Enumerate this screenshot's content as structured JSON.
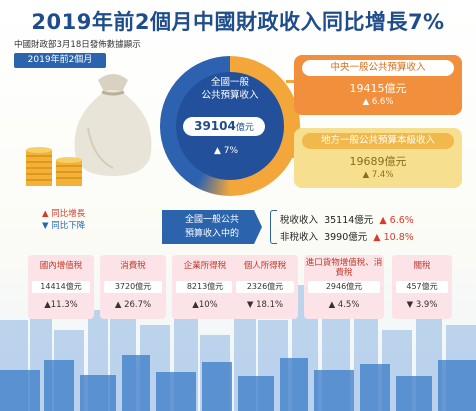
{
  "header": {
    "title": "2019年前2個月中國財政收入同比增長7%",
    "source": "中國財政部3月18日發佈數據顯示",
    "period": "2019年前2個月"
  },
  "total": {
    "label_line1": "全國一般",
    "label_line2": "公共預算收入",
    "value": "39104",
    "unit": "億元",
    "change": "▲ 7%"
  },
  "central": {
    "label": "中央一般公共預算收入",
    "value": "19415億元",
    "change": "▲ 6.6%"
  },
  "local": {
    "label": "地方一般公共預算本級收入",
    "value": "19689億元",
    "change": "▲ 7.4%"
  },
  "legend": {
    "up": "▲ 同比增長",
    "down": "▼ 同比下降"
  },
  "composition": {
    "label_line1": "全國一般公共",
    "label_line2": "預算收入中的",
    "rows": [
      {
        "name": "稅收收入",
        "value": "35114億元",
        "change": "▲ 6.6%"
      },
      {
        "name": "非稅收入",
        "value": "3990億元",
        "change": "▲ 10.8%"
      }
    ]
  },
  "taxes": [
    {
      "name": "國內增值稅",
      "value": "14414億元",
      "change": "▲11.3%"
    },
    {
      "name": "消費稅",
      "value": "3720億元",
      "change": "▲ 26.7%"
    },
    {
      "name": "企業所得稅",
      "value": "8213億元",
      "change": "▲10%"
    },
    {
      "name": "個人所得稅",
      "value": "2326億元",
      "change": "▼ 18.1%"
    },
    {
      "name": "進口貨物增值稅、消費稅",
      "value": "2946億元",
      "change": "▲ 4.5%"
    },
    {
      "name": "關稅",
      "value": "457億元",
      "change": "▼ 3.9%"
    }
  ],
  "colors": {
    "title_blue": "#1f4d8c",
    "ring_blue": "#23509a",
    "orange": "#f28f3c",
    "gold": "#f6df8e",
    "tax_pink": "#fbe3e7",
    "up_red": "#d93a2a",
    "down_blue": "#2b64ad"
  }
}
